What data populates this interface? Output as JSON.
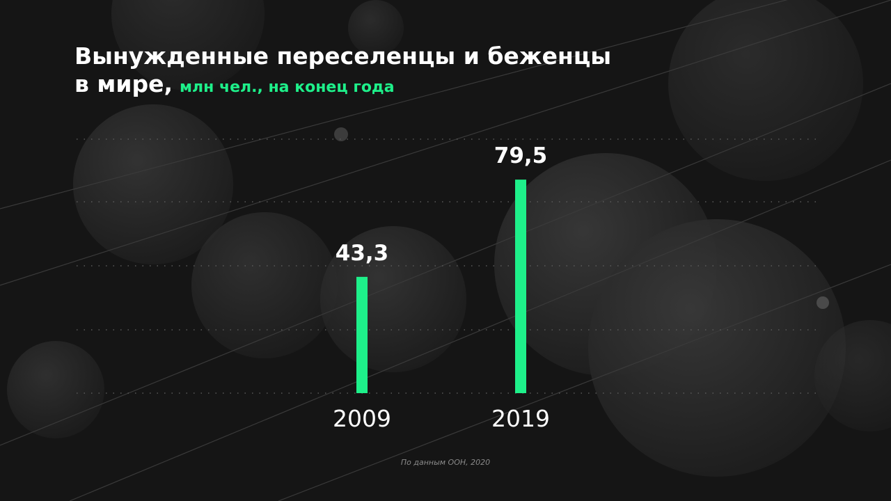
{
  "chart_data": {
    "type": "bar",
    "title": [
      "Вынужденные переселенцы и беженцы",
      "в мире,"
    ],
    "subtitle": "млн чел., на конец года",
    "categories": [
      "2009",
      "2019"
    ],
    "values": [
      43.3,
      79.5
    ],
    "value_labels": [
      "43,3",
      "79,5"
    ],
    "color": "#1ef08a",
    "ylim": [
      0,
      100
    ],
    "source": "По данным ООН, 2020"
  }
}
